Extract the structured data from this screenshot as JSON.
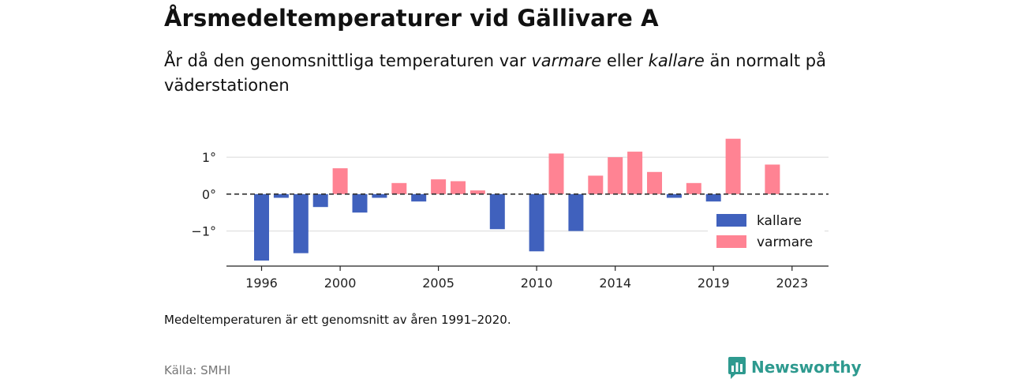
{
  "header": {
    "title": "Årsmedeltemperaturer vid Gällivare A",
    "subtitle_pre": "År då den genomsnittliga temperaturen var ",
    "subtitle_warm": "varmare",
    "subtitle_mid": " eller ",
    "subtitle_cold": "kallare",
    "subtitle_post": " än normalt på väderstationen"
  },
  "footer": {
    "note": "Medeltemperaturen är ett genomsnitt av åren 1991–2020.",
    "source": "Källa: SMHI",
    "brand": "Newsworthy"
  },
  "colors": {
    "cold": "#4061bd",
    "warm": "#ff8393",
    "grid": "#d9d9d9",
    "axis": "#222222",
    "brand": "#2e9a8f"
  },
  "chart_data": {
    "type": "bar",
    "x": [
      1996,
      1997,
      1998,
      1999,
      2000,
      2001,
      2002,
      2003,
      2004,
      2005,
      2006,
      2007,
      2008,
      2009,
      2010,
      2011,
      2012,
      2013,
      2014,
      2015,
      2016,
      2017,
      2018,
      2019,
      2020,
      2021,
      2022,
      2023
    ],
    "values": [
      -1.8,
      -0.1,
      -1.6,
      -0.35,
      0.7,
      -0.5,
      -0.1,
      0.3,
      -0.2,
      0.4,
      0.35,
      0.1,
      -0.95,
      null,
      -1.55,
      1.1,
      -1.0,
      0.5,
      1.0,
      1.15,
      0.6,
      -0.1,
      0.3,
      -0.2,
      1.5,
      null,
      0.8,
      null
    ],
    "reference_line": 0,
    "yticks": [
      1,
      0,
      -1
    ],
    "ytick_labels": [
      "1°",
      "0°",
      "−1°"
    ],
    "xticks": [
      1996,
      2000,
      2005,
      2010,
      2014,
      2019,
      2023
    ],
    "xtick_labels": [
      "1996",
      "2000",
      "2005",
      "2010",
      "2014",
      "2019",
      "2023"
    ],
    "ylim": [
      -1.95,
      2.05
    ],
    "legend": {
      "position": "bottom-right",
      "entries": [
        {
          "label": "kallare",
          "color": "#4061bd"
        },
        {
          "label": "varmare",
          "color": "#ff8393"
        }
      ]
    },
    "xlabel": "",
    "ylabel": "",
    "grid": true
  }
}
